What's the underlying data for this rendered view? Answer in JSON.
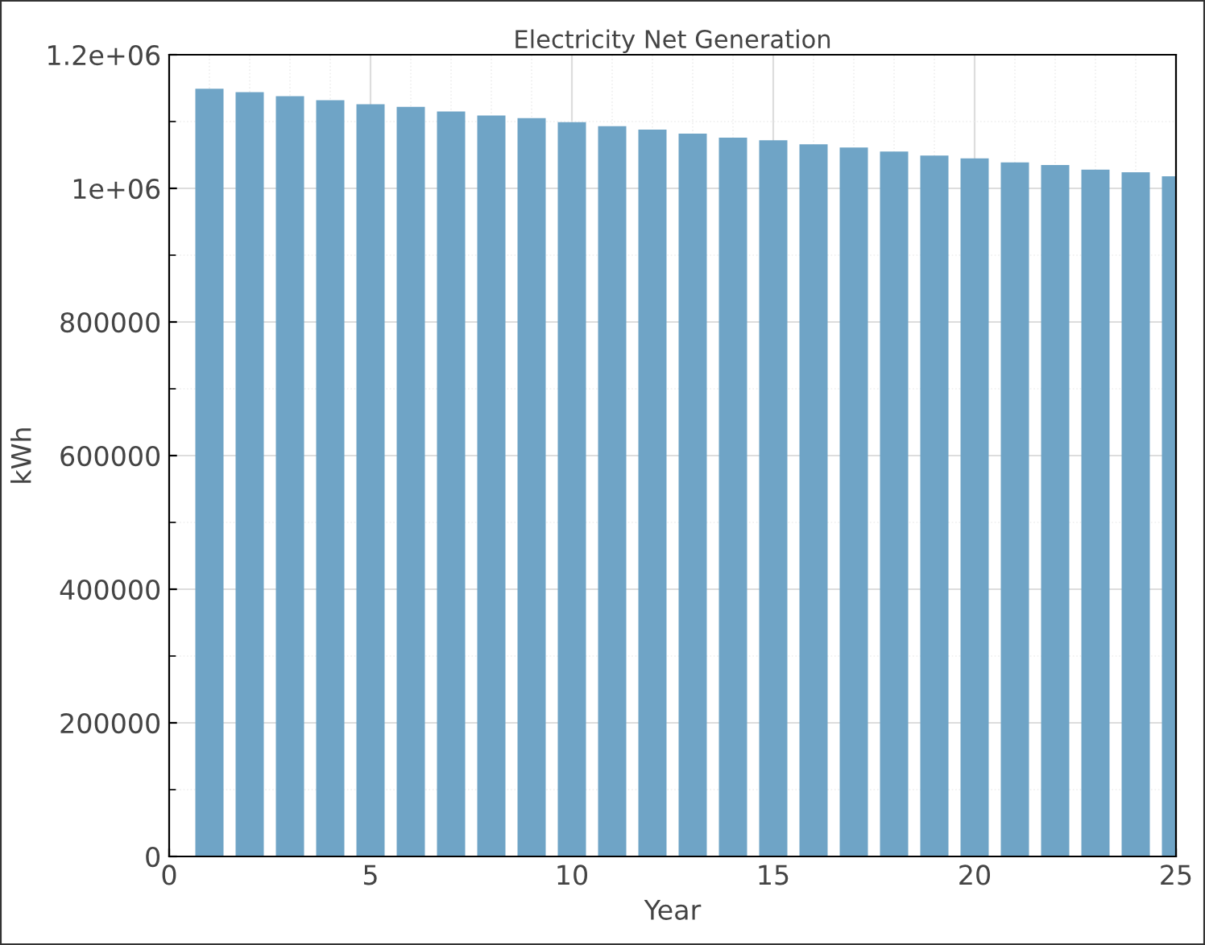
{
  "chart_data": {
    "type": "bar",
    "title": "Electricity Net Generation",
    "xlabel": "Year",
    "ylabel": "kWh",
    "x": [
      1,
      2,
      3,
      4,
      5,
      6,
      7,
      8,
      9,
      10,
      11,
      12,
      13,
      14,
      15,
      16,
      17,
      18,
      19,
      20,
      21,
      22,
      23,
      24,
      25
    ],
    "values": [
      1149000,
      1144000,
      1138000,
      1132000,
      1126000,
      1122000,
      1115000,
      1109000,
      1105000,
      1099000,
      1093000,
      1088000,
      1082000,
      1076000,
      1072000,
      1066000,
      1061000,
      1055000,
      1049000,
      1045000,
      1039000,
      1035000,
      1028000,
      1024000,
      1018000
    ],
    "color": "#6fa4c6",
    "xlim": [
      0,
      25
    ],
    "xticks": [
      0,
      5,
      10,
      15,
      20,
      25
    ],
    "ylim": [
      0,
      1200000
    ],
    "yticks": [
      0,
      200000,
      400000,
      600000,
      800000,
      {
        "value": 1000000,
        "label": "1e+06"
      },
      {
        "value": 1200000,
        "label": "1.2e+06"
      }
    ],
    "grid": true
  }
}
